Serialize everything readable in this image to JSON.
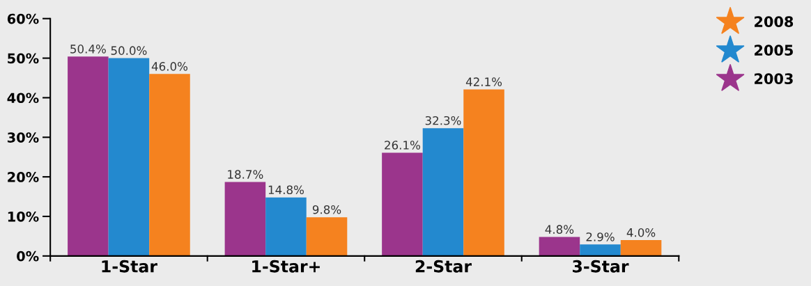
{
  "chart_data": {
    "type": "bar",
    "categories": [
      "1-Star",
      "1-Star+",
      "2-Star",
      "3-Star"
    ],
    "series": [
      {
        "name": "2003",
        "color": "#9b358c",
        "values": [
          50.4,
          18.7,
          26.1,
          4.8
        ],
        "value_labels": [
          "50.4%",
          "18.7%",
          "26.1%",
          "4.8%"
        ]
      },
      {
        "name": "2005",
        "color": "#2389cf",
        "values": [
          50.0,
          14.8,
          32.3,
          2.9
        ],
        "value_labels": [
          "50.0%",
          "14.8%",
          "32.3%",
          "2.9%"
        ]
      },
      {
        "name": "2008",
        "color": "#f5821f",
        "values": [
          46.0,
          9.8,
          42.1,
          4.0
        ],
        "value_labels": [
          "46.0%",
          "9.8%",
          "42.1%",
          "4.0%"
        ]
      }
    ],
    "ylim": [
      0,
      60
    ],
    "yticks": [
      {
        "value": 0,
        "label": "0%"
      },
      {
        "value": 10,
        "label": "10%"
      },
      {
        "value": 20,
        "label": "20%"
      },
      {
        "value": 30,
        "label": "30%"
      },
      {
        "value": 40,
        "label": "40%"
      },
      {
        "value": 50,
        "label": "50%"
      },
      {
        "value": 60,
        "label": "60%"
      }
    ],
    "grid": false,
    "legend": "top right"
  }
}
